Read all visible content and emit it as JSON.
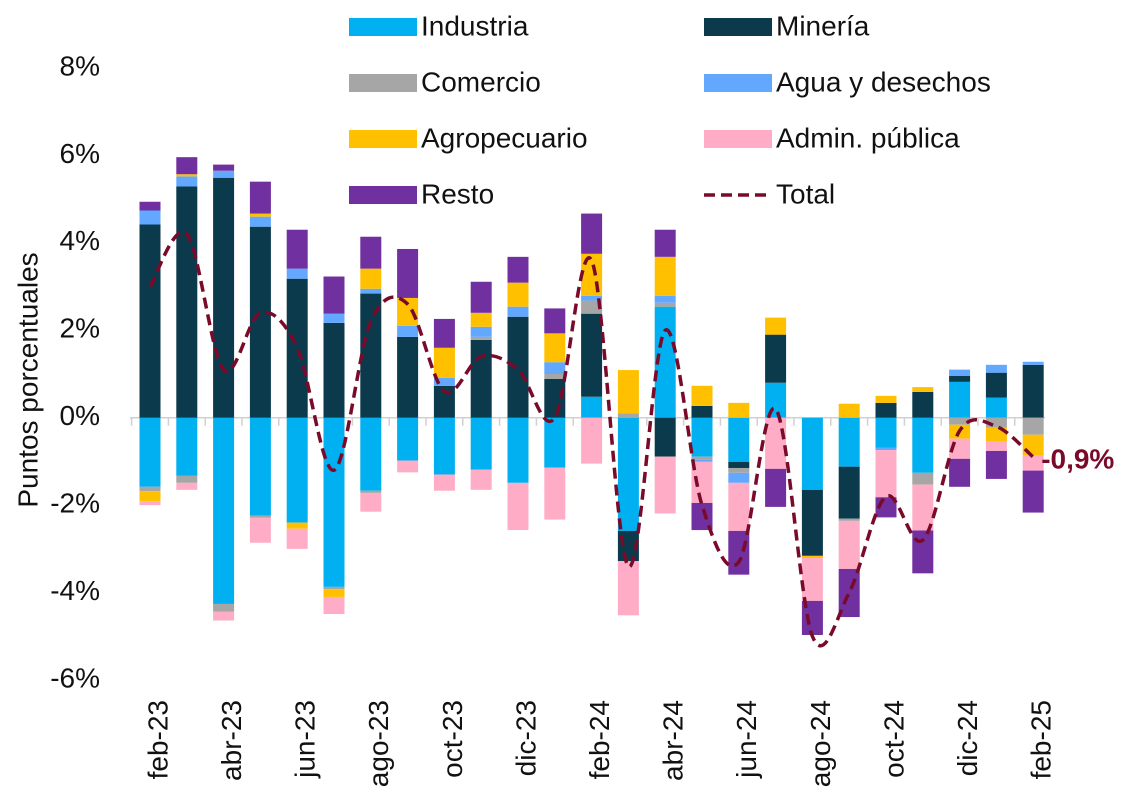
{
  "chart_data": {
    "type": "stacked_bar_line",
    "y_label": "Puntos porcentuales",
    "categories": [
      "feb-23",
      null,
      "abr-23",
      null,
      "jun-23",
      null,
      "ago-23",
      null,
      "oct-23",
      null,
      "dic-23",
      null,
      "feb-24",
      null,
      "abr-24",
      null,
      "jun-24",
      null,
      "ago-24",
      null,
      "oct-24",
      null,
      "dic-24",
      null,
      "feb-25"
    ],
    "ylim": [
      -6,
      8
    ],
    "yticks": [
      {
        "value": -6,
        "label": "-6%"
      },
      {
        "value": -4,
        "label": "-4%"
      },
      {
        "value": -2,
        "label": "-2%"
      },
      {
        "value": 0,
        "label": "0%"
      },
      {
        "value": 2,
        "label": "2%"
      },
      {
        "value": 4,
        "label": "4%"
      },
      {
        "value": 6,
        "label": "6%"
      },
      {
        "value": 8,
        "label": "8%"
      }
    ],
    "series": [
      {
        "name": "Industria",
        "color": "#00b0f0",
        "values": [
          -1.58,
          -1.33,
          -4.26,
          -2.24,
          -2.4,
          -3.87,
          -1.67,
          -0.98,
          -1.3,
          -1.19,
          -1.49,
          -1.14,
          0.48,
          -2.59,
          2.54,
          -0.89,
          -1.01,
          0.8,
          -1.65,
          -1.12,
          -0.69,
          -1.26,
          0.82,
          0.46,
          0
        ]
      },
      {
        "name": "Minería",
        "color": "#0b3a4d",
        "values": [
          4.42,
          5.29,
          5.49,
          4.37,
          3.18,
          2.17,
          2.84,
          1.85,
          0.73,
          1.78,
          2.31,
          0.89,
          1.9,
          -0.69,
          -0.89,
          0.27,
          -0.14,
          1.1,
          -1.51,
          -1.19,
          0.34,
          0.59,
          0.14,
          0.57,
          1.21
        ]
      },
      {
        "name": "Comercio",
        "color": "#a6a6a6",
        "values": [
          -0.1,
          -0.16,
          -0.18,
          -0.05,
          0,
          -0.05,
          -0.05,
          0,
          0,
          0.07,
          0,
          0.11,
          0.3,
          0.1,
          0.09,
          -0.07,
          -0.11,
          0,
          0,
          -0.05,
          0,
          -0.27,
          -0.16,
          -0.23,
          -0.39
        ]
      },
      {
        "name": "Agua y desechos",
        "color": "#63a8ff",
        "values": [
          0.32,
          0.23,
          0.16,
          0.23,
          0.23,
          0.21,
          0.11,
          0.25,
          0.18,
          0.23,
          0.23,
          0.27,
          0.11,
          0,
          0.16,
          -0.05,
          -0.23,
          0,
          0,
          0,
          -0.05,
          0,
          0.14,
          0.18,
          0.07
        ]
      },
      {
        "name": "Agropecuario",
        "color": "#ffc000",
        "values": [
          -0.23,
          0.05,
          0,
          0.07,
          -0.14,
          -0.18,
          0.46,
          0.64,
          0.69,
          0.32,
          0.55,
          0.66,
          0.96,
          0.99,
          0.89,
          0.46,
          0.34,
          0.39,
          -0.05,
          0.32,
          0.16,
          0.11,
          -0.32,
          -0.32,
          -0.48
        ]
      },
      {
        "name": "Admin. pública",
        "color": "#ffadc6",
        "values": [
          -0.09,
          -0.16,
          -0.2,
          -0.57,
          -0.46,
          -0.39,
          -0.43,
          -0.27,
          -0.37,
          -0.46,
          -1.08,
          -1.19,
          -1.05,
          -1.24,
          -1.3,
          -0.94,
          -1.1,
          -1.17,
          -0.98,
          -1.1,
          -1.08,
          -1.05,
          -0.46,
          -0.21,
          -0.34
        ]
      },
      {
        "name": "Resto",
        "color": "#7030a0",
        "values": [
          0.2,
          0.39,
          0.14,
          0.73,
          0.89,
          0.85,
          0.73,
          1.12,
          0.66,
          0.71,
          0.59,
          0.57,
          0.92,
          0,
          0.62,
          -0.62,
          -1.0,
          -0.87,
          -0.78,
          -1.1,
          -0.46,
          -0.98,
          -0.64,
          -0.64,
          -0.96
        ]
      },
      {
        "name": "Total",
        "color": "#7a0a2a",
        "type": "line",
        "dashed": true,
        "values": [
          3.0,
          4.2,
          1.1,
          2.4,
          1.6,
          -1.2,
          2.2,
          2.6,
          0.6,
          1.4,
          1.1,
          0.0,
          3.6,
          -3.4,
          2.0,
          -2.0,
          -3.3,
          0.2,
          -5.0,
          -4.0,
          -1.8,
          -2.8,
          -0.3,
          -0.2,
          -0.9
        ]
      }
    ],
    "annotations": [
      "-0,9%"
    ]
  }
}
